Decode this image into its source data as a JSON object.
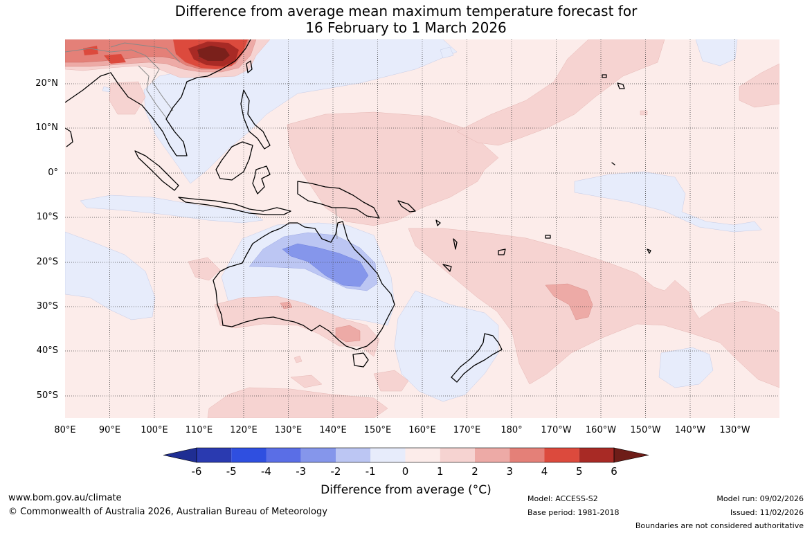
{
  "title": {
    "line1": "Difference from average mean maximum temperature forecast for",
    "line2": "16 February to 1 March 2026"
  },
  "map": {
    "region": "Asia-Pacific / Australia",
    "lat_labels": [
      "20°N",
      "10°N",
      "0°",
      "10°S",
      "20°S",
      "30°S",
      "40°S",
      "50°S"
    ],
    "lon_labels": [
      "80°E",
      "90°E",
      "100°E",
      "110°E",
      "120°E",
      "130°E",
      "140°E",
      "150°E",
      "160°E",
      "170°E",
      "180°",
      "170°W",
      "160°W",
      "150°W",
      "140°W",
      "130°W"
    ]
  },
  "colorbar": {
    "ticks": [
      "-6",
      "-5",
      "-4",
      "-3",
      "-2",
      "-1",
      "0",
      "1",
      "2",
      "3",
      "4",
      "5",
      "6"
    ],
    "colors": [
      "#1f2e93",
      "#2a3ab0",
      "#2f4fe0",
      "#5a6ee6",
      "#8596eb",
      "#bcc6f3",
      "#e7ecfb",
      "#fcecea",
      "#f6d3d1",
      "#edaaa6",
      "#e48078",
      "#dc4a3d",
      "#a82a25",
      "#6e1d18"
    ],
    "label": "Difference from average (°C)"
  },
  "footer": {
    "website": "www.bom.gov.au/climate",
    "copyright": "© Commonwealth of Australia 2026, Australian Bureau of Meteorology",
    "model": "Model: ACCESS-S2",
    "base_period": "Base period: 1981-2018",
    "model_run": "Model run: 09/02/2026",
    "issued": "Issued: 11/02/2026",
    "disclaimer": "Boundaries are not considered authoritative"
  }
}
